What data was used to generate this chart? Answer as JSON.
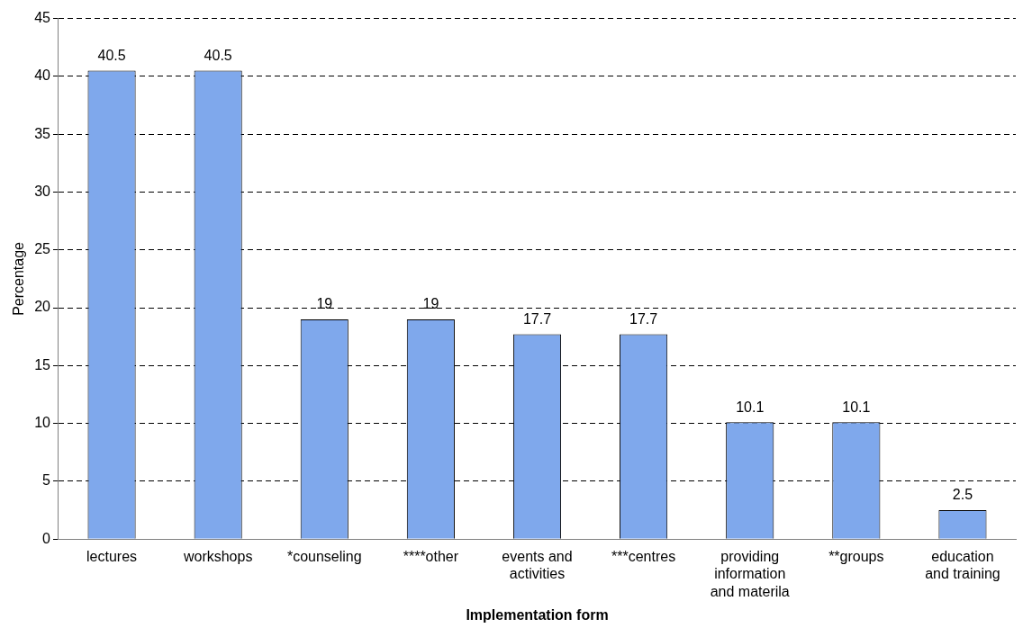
{
  "chart_data": {
    "type": "bar",
    "xlabel": "Implementation form",
    "ylabel": "Percentage",
    "categories": [
      "lectures",
      "workshops",
      "*counseling",
      "****other",
      "events and activities",
      "***centres",
      "providing information and materila",
      "**groups",
      "education and training"
    ],
    "values": [
      40.5,
      40.5,
      19,
      19,
      17.7,
      17.7,
      10.1,
      10.1,
      2.5
    ],
    "color": "#7fa8ec",
    "ylim": [
      0,
      45
    ],
    "yticks": [
      0,
      5,
      10,
      15,
      20,
      25,
      30,
      35,
      40,
      45
    ],
    "grid": "y",
    "data_labels": true,
    "legend": false
  }
}
